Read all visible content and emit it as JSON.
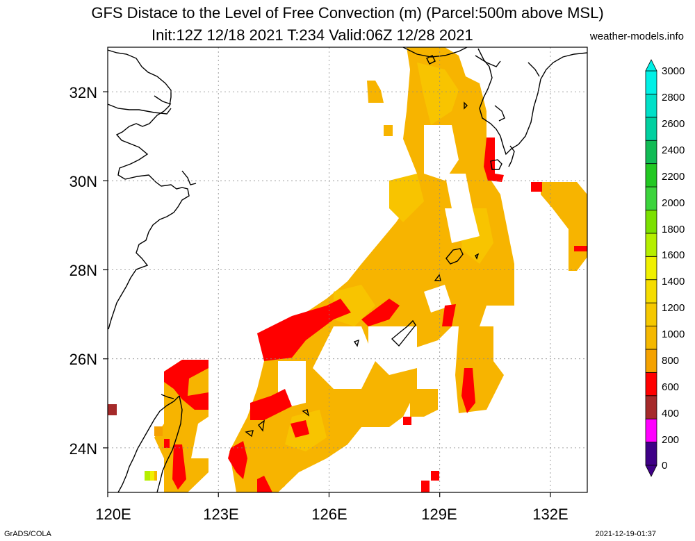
{
  "header": {
    "title_line1": "GFS Distace to the Level of Free Convection (m) (Parcel:500m above MSL)",
    "title_line2": "Init:12Z 12/18 2021 T:234 Valid:06Z 12/28 2021",
    "credit": "weather-models.info"
  },
  "map": {
    "lon_ticks": [
      "120E",
      "123E",
      "126E",
      "129E",
      "132E"
    ],
    "lat_ticks": [
      "32N",
      "30N",
      "28N",
      "26N",
      "24N"
    ],
    "lon_range": [
      120,
      133
    ],
    "lat_range": [
      23,
      33
    ],
    "grid": true
  },
  "colorbar": {
    "labels": [
      "0",
      "200",
      "400",
      "600",
      "800",
      "1000",
      "1200",
      "1400",
      "1600",
      "1800",
      "2000",
      "2200",
      "2400",
      "2600",
      "2800",
      "3000"
    ],
    "colors": [
      "#3f0087",
      "#ff00ff",
      "#a52a2a",
      "#ff0000",
      "#f5a200",
      "#f5b800",
      "#f5c800",
      "#f5dc00",
      "#f0f000",
      "#b5ee00",
      "#7be000",
      "#3cd43c",
      "#22c822",
      "#11bb55",
      "#00d0a0",
      "#00e0c8",
      "#00f0e6"
    ]
  },
  "footer": {
    "left": "GrADS/COLA",
    "right": "2021-12-19-01:37"
  },
  "colors": {
    "red": "#ff0000",
    "orange_dark": "#f5a000",
    "orange": "#f7b400",
    "gold": "#f8c400"
  }
}
